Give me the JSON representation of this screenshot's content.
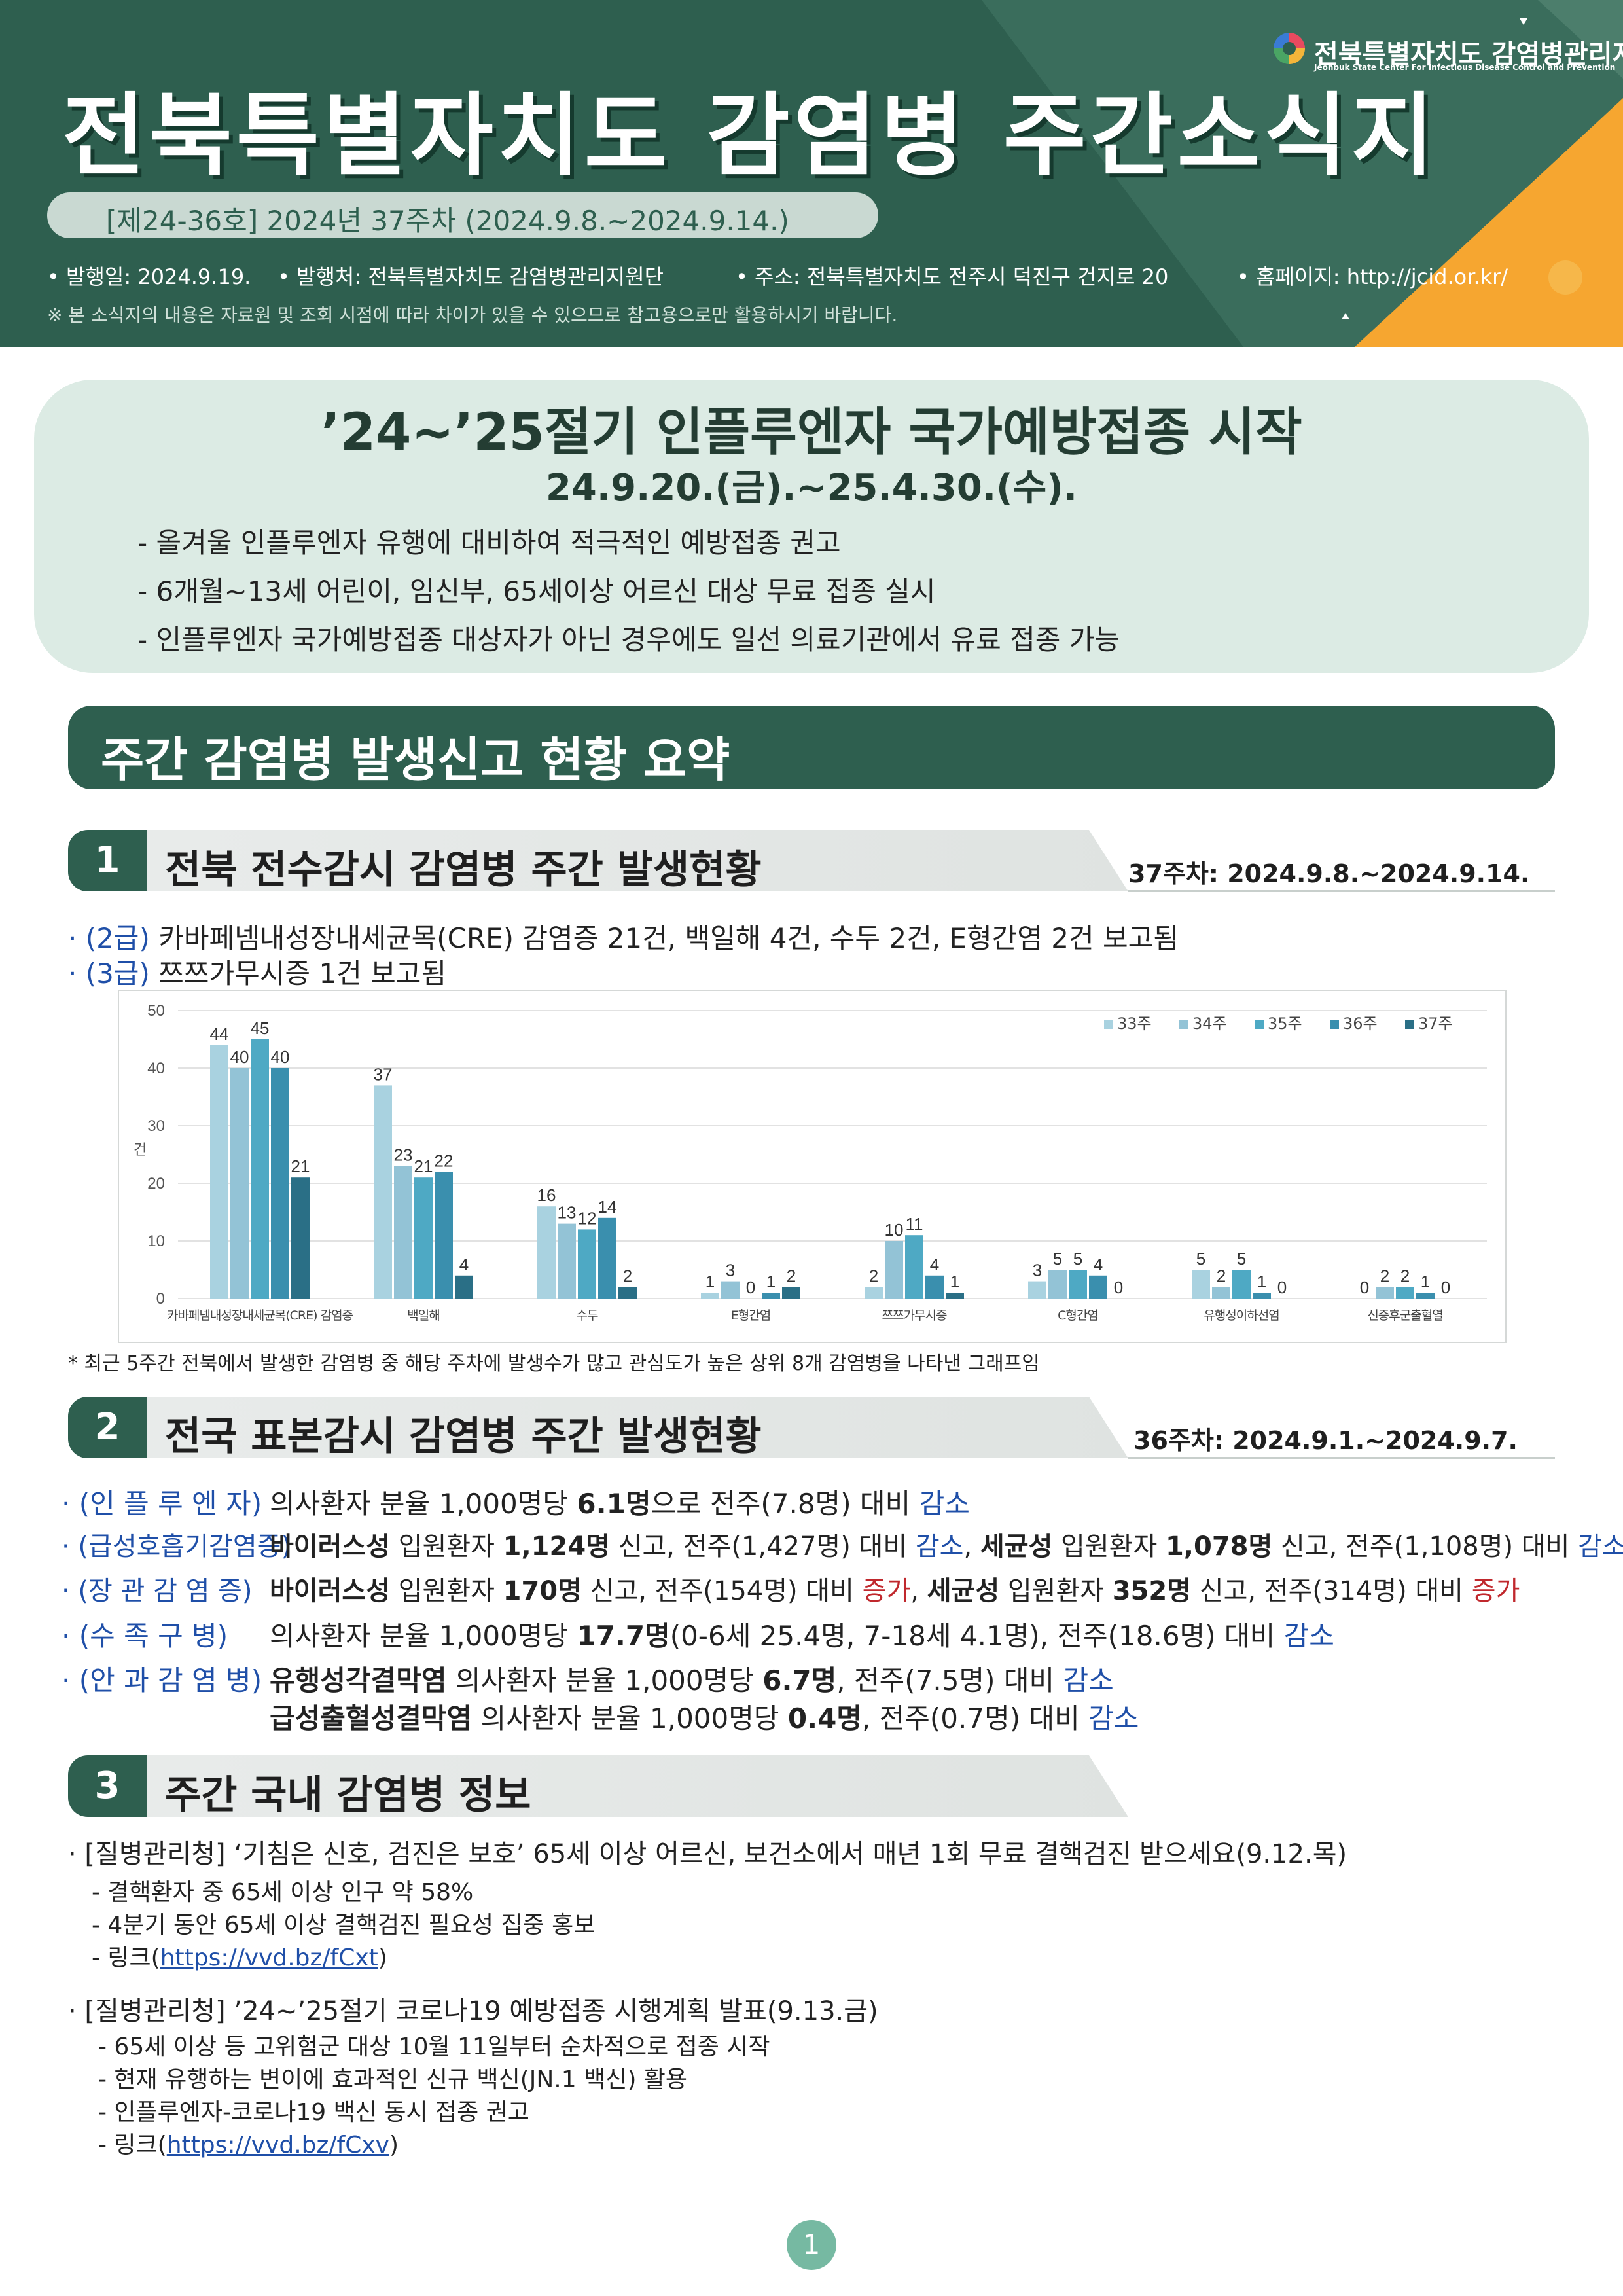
{
  "header": {
    "title": "전북특별자치도  감염병  주간소식지",
    "issue": "[제24-36호] 2024년 37주차 (2024.9.8.~2024.9.14.)",
    "published": "• 발행일: 2024.9.19.",
    "publisher": "• 발행처: 전북특별자치도 감염병관리지원단",
    "address": "• 주소: 전북특별자치도 전주시 덕진구 건지로 20",
    "homepage": "• 홈페이지: http://jcid.or.kr/",
    "note": "※ 본 소식지의 내용은 자료원 및 조회 시점에 따라 차이가 있을 수 있으므로 참고용으로만 활용하시기 바랍니다.",
    "logo_name": "전북특별자치도 감염병관리지원단",
    "logo_sub": "Jeonbuk State Center For Infectious Disease Control and Prevention",
    "colors": {
      "green": "#2e5f4f",
      "orange": "#f6a630"
    }
  },
  "banner": {
    "title": "’24~’25절기 인플루엔자 국가예방접종 시작",
    "date": "24.9.20.(금).~25.4.30.(수).",
    "items": [
      "- 올겨울 인플루엔자 유행에 대비하여 적극적인 예방접종 권고",
      "- 6개월~13세 어린이, 임신부, 65세이상 어르신 대상 무료 접종 실시",
      "- 인플루엔자 국가예방접종 대상자가 아닌 경우에도 일선 의료기관에서 유료 접종 가능"
    ]
  },
  "summary_title": "주간 감염병 발생신고 현황 요약",
  "section1": {
    "num": "1",
    "title": "전북 전수감시 감염병 주간 발생현황",
    "period": "37주차: 2024.9.8.~2024.9.14.",
    "line1_grade": "· (2급)",
    "line1_text": " 카바페넴내성장내세균목(CRE) 감염증 21건, 백일해 4건, 수두 2건, E형간염 2건 보고됨",
    "line2_grade": "· (3급)",
    "line2_text": " 쯔쯔가무시증 1건 보고됨",
    "footnote": "* 최근 5주간 전북에서 발생한 감염병 중 해당 주차에 발생수가 많고 관심도가 높은 상위 8개 감염병을 나타낸 그래프임"
  },
  "chart_data": {
    "type": "bar",
    "ylabel": "건",
    "ylim": [
      0,
      50
    ],
    "yticks": [
      0,
      10,
      20,
      30,
      40,
      50
    ],
    "categories": [
      "카바페넴내성장내세균목(CRE) 감염증",
      "백일해",
      "수두",
      "E형간염",
      "쯔쯔가무시증",
      "C형간염",
      "유행성이하선염",
      "신증후군출혈열"
    ],
    "series": [
      {
        "name": "33주",
        "color": "#a9d2e0",
        "values": [
          44,
          37,
          16,
          1,
          2,
          3,
          5,
          0
        ]
      },
      {
        "name": "34주",
        "color": "#93c3d6",
        "values": [
          40,
          23,
          13,
          3,
          10,
          5,
          2,
          2
        ]
      },
      {
        "name": "35주",
        "color": "#4ea9c4",
        "values": [
          45,
          21,
          12,
          0,
          11,
          5,
          5,
          2
        ]
      },
      {
        "name": "36주",
        "color": "#3a8fae",
        "values": [
          40,
          22,
          14,
          1,
          4,
          4,
          1,
          1
        ]
      },
      {
        "name": "37주",
        "color": "#2a6f86",
        "values": [
          21,
          4,
          2,
          2,
          1,
          0,
          0,
          0
        ]
      }
    ],
    "legend": "top-right",
    "grid": true
  },
  "section2": {
    "num": "2",
    "title": "전국 표본감시 감염병 주간 발생현황",
    "period": "36주차: 2024.9.1.~2024.9.7.",
    "rows": [
      {
        "label": "· (인 플 루 엔 자)",
        "parts": [
          "의사환자 분율 1,000명당 ",
          "6.1명",
          "으로 전주(7.8명) 대비 ",
          "감소"
        ]
      },
      {
        "label": "· (급성호흡기감염증)",
        "parts": [
          "바이러스성",
          " 입원환자 ",
          "1,124명",
          " 신고, 전주(1,427명) 대비 ",
          "감소",
          ", ",
          "세균성",
          " 입원환자 ",
          "1,078명",
          " 신고, 전주(1,108명) 대비 ",
          "감소"
        ]
      },
      {
        "label": "· (장 관 감 염 증)",
        "parts": [
          "바이러스성",
          " 입원환자 ",
          "170명",
          " 신고, 전주(154명) 대비 ",
          "증가",
          ", ",
          "세균성",
          " 입원환자 ",
          "352명",
          " 신고, 전주(314명) 대비 ",
          "증가"
        ]
      },
      {
        "label": "· (수 족 구 병)",
        "parts": [
          "의사환자 분율 1,000명당 ",
          "17.7명",
          "(0-6세 25.4명, 7-18세 4.1명), 전주(18.6명) 대비 ",
          "감소"
        ]
      },
      {
        "label": "· (안 과 감 염 병)",
        "parts": [
          "유행성각결막염",
          " 의사환자 분율 1,000명당 ",
          "6.7명",
          ", 전주(7.5명) 대비 ",
          "감소"
        ]
      },
      {
        "label": "",
        "parts": [
          "급성출혈성결막염",
          " 의사환자 분율 1,000명당 ",
          "0.4명",
          ", 전주(0.7명) 대비 ",
          "감소"
        ]
      }
    ]
  },
  "section3": {
    "num": "3",
    "title": "주간 국내 감염병 정보",
    "news": [
      {
        "title": "· [질병관리청] ‘기침은 신호, 검진은 보호’ 65세 이상 어르신, 보건소에서 매년 1회 무료 결핵검진 받으세요(9.12.목)",
        "items": [
          "- 결핵환자 중 65세 이상 인구 약 58%",
          "- 4분기 동안 65세 이상 결핵검진 필요성 집중 홍보"
        ],
        "link_prefix": "- 링크(",
        "link": "https://vvd.bz/fCxt",
        "link_suffix": ")"
      },
      {
        "title": "· [질병관리청] ’24~’25절기 코로나19 예방접종 시행계획 발표(9.13.금)",
        "items": [
          "- 65세 이상 등 고위험군 대상 10월 11일부터 순차적으로 접종 시작",
          "- 현재 유행하는 변이에 효과적인 신규 백신(JN.1 백신) 활용",
          "- 인플루엔자-코로나19 백신 동시 접종 권고"
        ],
        "link_prefix": "- 링크(",
        "link": "https://vvd.bz/fCxv",
        "link_suffix": ")"
      }
    ]
  },
  "page_number": "1"
}
